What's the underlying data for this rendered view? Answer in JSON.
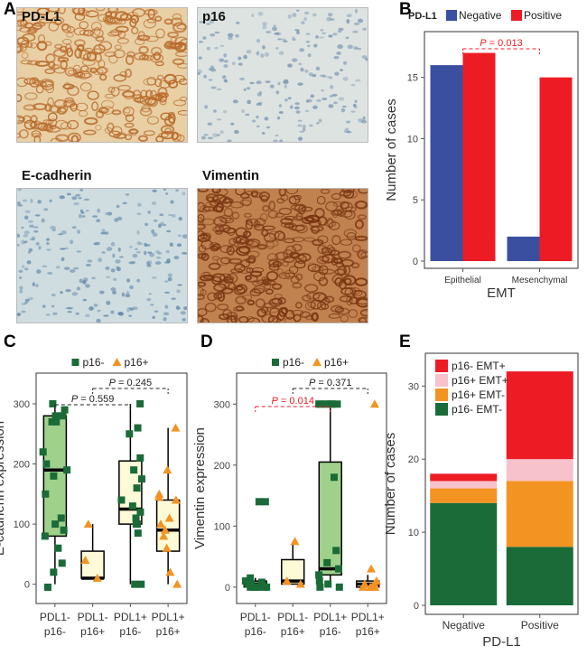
{
  "panels": {
    "A": "A",
    "B": "B",
    "C": "C",
    "D": "D",
    "E": "E"
  },
  "ihc": {
    "tiles": [
      {
        "label": "PD-L1",
        "stain": "brown-membrane",
        "base": "#e8cfa4",
        "dot": "#b86a2a",
        "density": 0.55
      },
      {
        "label": "p16",
        "stain": "negative",
        "base": "#dde3e0",
        "dot": "#6f8fb0",
        "density": 0.2
      },
      {
        "label": "E-cadherin",
        "stain": "negative",
        "base": "#cfdde0",
        "dot": "#5f86a8",
        "density": 0.3
      },
      {
        "label": "Vimentin",
        "stain": "brown-strong",
        "base": "#c0824f",
        "dot": "#7a3512",
        "density": 0.75
      }
    ]
  },
  "colors": {
    "negative": "#3b4fa0",
    "positive": "#ed1c24",
    "p16neg": "#1a6b38",
    "p16pos": "#f39322",
    "box_fill_pdl1neg_p16neg": "#9fd18a",
    "box_fill_other": "#fdfad8",
    "sig": "#ed1c24",
    "stack_p16neg_emtpos": "#ed1c24",
    "stack_p16pos_emtpos": "#f7c2cc",
    "stack_p16pos_emtneg": "#f39322",
    "stack_p16neg_emtneg": "#1a6b38"
  },
  "chart_data": [
    {
      "id": "B",
      "type": "bar",
      "legend_title": "PD-L1",
      "legend": [
        "Negative",
        "Positive"
      ],
      "categories": [
        "Epithelial",
        "Mesenchymal"
      ],
      "series": [
        {
          "name": "Negative",
          "values": [
            16,
            2
          ]
        },
        {
          "name": "Positive",
          "values": [
            17,
            15
          ]
        }
      ],
      "xlabel": "EMT",
      "ylabel": "Number of cases",
      "ylim": [
        0,
        18
      ],
      "yticks": [
        0,
        5,
        10,
        15
      ],
      "annotation": "P = 0.013"
    },
    {
      "id": "C",
      "type": "box",
      "legend": [
        "p16-",
        "p16+"
      ],
      "ylabel": "E-cadherin expression",
      "ylim": [
        -20,
        330
      ],
      "yticks": [
        0,
        100,
        200,
        300
      ],
      "groups": [
        {
          "label1": "PDL1-",
          "label2": "p16-",
          "marker": "square",
          "box": {
            "q1": 80,
            "median": 190,
            "q3": 280,
            "lo": 0,
            "hi": 300
          },
          "points": [
            300,
            290,
            280,
            280,
            270,
            270,
            220,
            200,
            190,
            180,
            150,
            110,
            100,
            90,
            80,
            60,
            35,
            20,
            -5
          ]
        },
        {
          "label1": "PDL1-",
          "label2": "p16+",
          "marker": "triangle",
          "box": {
            "q1": 10,
            "median": 10,
            "q3": 55,
            "lo": 10,
            "hi": 100
          },
          "points": [
            100,
            40,
            10
          ]
        },
        {
          "label1": "PDL1+",
          "label2": "p16-",
          "marker": "square",
          "box": {
            "q1": 100,
            "median": 125,
            "q3": 205,
            "lo": 0,
            "hi": 300
          },
          "points": [
            300,
            260,
            250,
            210,
            190,
            175,
            160,
            140,
            130,
            120,
            110,
            100,
            100,
            85,
            0,
            0
          ]
        },
        {
          "label1": "PDL1+",
          "label2": "p16+",
          "marker": "triangle",
          "box": {
            "q1": 55,
            "median": 90,
            "q3": 140,
            "lo": 0,
            "hi": 260
          },
          "points": [
            260,
            190,
            150,
            145,
            140,
            110,
            100,
            90,
            80,
            60,
            20,
            0
          ]
        }
      ],
      "annotations": [
        "P = 0.559",
        "P = 0.245"
      ]
    },
    {
      "id": "D",
      "type": "box",
      "legend": [
        "p16-",
        "p16+"
      ],
      "ylabel": "Vimentin expression",
      "ylim": [
        -15,
        330
      ],
      "yticks": [
        0,
        100,
        200,
        300
      ],
      "groups": [
        {
          "label1": "PDL1-",
          "label2": "p16-",
          "marker": "square",
          "box": {
            "q1": 0,
            "median": 5,
            "q3": 10,
            "lo": 0,
            "hi": 15
          },
          "points": [
            140,
            140,
            15,
            10,
            10,
            8,
            5,
            5,
            3,
            2,
            0,
            0,
            0,
            0,
            0,
            0,
            0
          ]
        },
        {
          "label1": "PDL1-",
          "label2": "p16+",
          "marker": "triangle",
          "box": {
            "q1": 5,
            "median": 10,
            "q3": 45,
            "lo": 5,
            "hi": 70
          },
          "points": [
            75,
            10,
            5
          ]
        },
        {
          "label1": "PDL1+",
          "label2": "p16-",
          "marker": "square",
          "box": {
            "q1": 20,
            "median": 30,
            "q3": 205,
            "lo": 0,
            "hi": 300
          },
          "points": [
            300,
            300,
            300,
            300,
            300,
            300,
            300,
            180,
            60,
            40,
            30,
            20,
            10,
            5,
            0,
            0
          ]
        },
        {
          "label1": "PDL1+",
          "label2": "p16+",
          "marker": "triangle",
          "box": {
            "q1": 0,
            "median": 5,
            "q3": 10,
            "lo": 0,
            "hi": 20
          },
          "points": [
            300,
            30,
            10,
            5,
            5,
            0,
            0,
            0,
            0
          ]
        }
      ],
      "annotations": [
        "P = 0.014",
        "P = 0.371"
      ]
    },
    {
      "id": "E",
      "type": "bar",
      "stacked": true,
      "categories": [
        "Negative",
        "Positive"
      ],
      "series": [
        {
          "name": "p16- EMT-",
          "values": [
            14,
            8
          ]
        },
        {
          "name": "p16+ EMT-",
          "values": [
            2,
            9
          ]
        },
        {
          "name": "p16+ EMT+",
          "values": [
            1,
            3
          ]
        },
        {
          "name": "p16- EMT+",
          "values": [
            1,
            12
          ]
        }
      ],
      "legend": [
        "p16- EMT+",
        "p16+ EMT+",
        "p16+ EMT-",
        "p16- EMT-"
      ],
      "xlabel": "PD-L1",
      "ylabel": "Number of cases",
      "ylim": [
        0,
        33
      ],
      "yticks": [
        0,
        10,
        20,
        30
      ]
    }
  ]
}
